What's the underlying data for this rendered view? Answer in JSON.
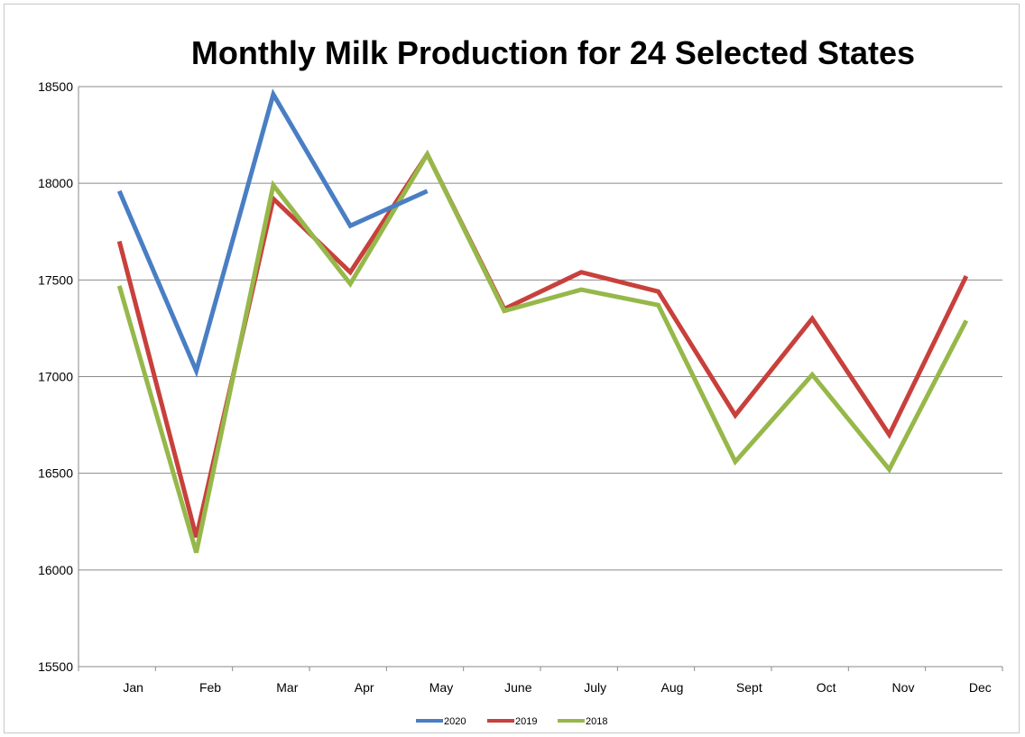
{
  "chart_data": {
    "type": "line",
    "title": "Monthly Milk Production for 24 Selected States",
    "xlabel": "",
    "ylabel": "",
    "categories": [
      "Jan",
      "Feb",
      "Mar",
      "Apr",
      "May",
      "June",
      "July",
      "Aug",
      "Sept",
      "Oct",
      "Nov",
      "Dec"
    ],
    "ylim": [
      15500,
      18500
    ],
    "yticks": [
      15500,
      16000,
      16500,
      17000,
      17500,
      18000,
      18500
    ],
    "grid": true,
    "legend_position": "bottom",
    "series": [
      {
        "name": "2020",
        "color": "#4a7ec4",
        "values": [
          17960,
          17030,
          18460,
          17780,
          17960,
          null,
          null,
          null,
          null,
          null,
          null,
          null
        ]
      },
      {
        "name": "2019",
        "color": "#c8403c",
        "values": [
          17700,
          16170,
          17920,
          17540,
          18150,
          17350,
          17540,
          17440,
          16800,
          17300,
          16700,
          17520
        ]
      },
      {
        "name": "2018",
        "color": "#96b84a",
        "values": [
          17470,
          16090,
          17990,
          17480,
          18150,
          17340,
          17450,
          17370,
          16560,
          17010,
          16520,
          17290
        ]
      }
    ]
  }
}
